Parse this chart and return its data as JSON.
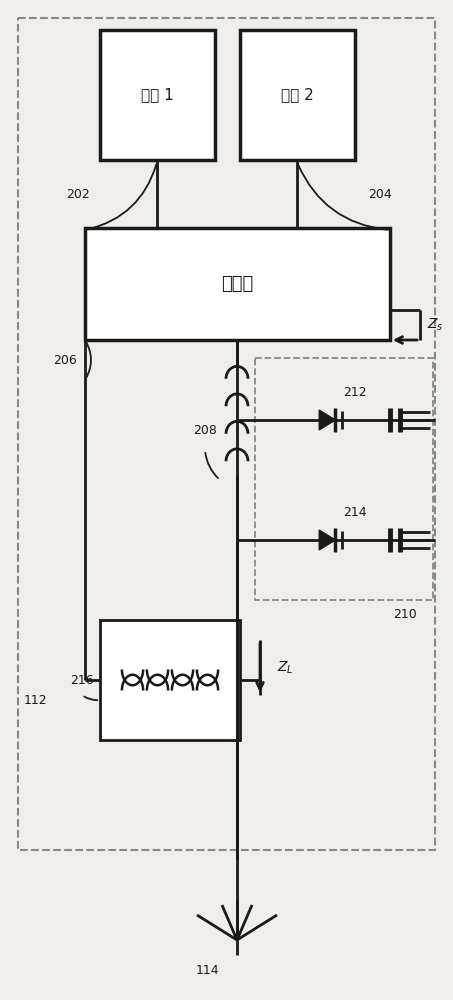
{
  "bg_color": "#f0eeeb",
  "line_color": "#1a1a1a",
  "box_fill": "#ffffff",
  "dashed_color": "#888888",
  "figsize": [
    4.53,
    10.0
  ],
  "dpi": 100,
  "labels": {
    "port1": "源口 1",
    "port2": "源口 2",
    "combiner": "组合器",
    "n202": "202",
    "n204": "204",
    "n206": "206",
    "n208": "208",
    "n210": "210",
    "n212": "212",
    "n214": "214",
    "n216": "216",
    "n112": "112",
    "n114": "114"
  }
}
